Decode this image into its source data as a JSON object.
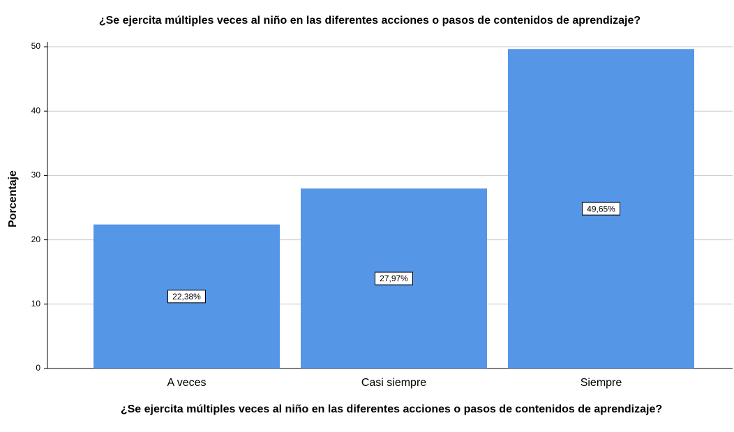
{
  "chart_data": {
    "type": "bar",
    "title": "¿Se ejercita múltiples veces al niño en las diferentes acciones o pasos de contenidos de aprendizaje?",
    "x_label": "¿Se ejercita múltiples veces al niño en las diferentes acciones o pasos de contenidos de aprendizaje?",
    "y_label": "Porcentaje",
    "categories": [
      "A veces",
      "Casi siempre",
      "Siempre"
    ],
    "values": [
      22.38,
      27.97,
      49.65
    ],
    "value_labels": [
      "22,38%",
      "27,97%",
      "49,65%"
    ],
    "color": "#5596e6",
    "ylim": [
      0,
      50
    ],
    "yticks": [
      0,
      10,
      20,
      30,
      40,
      50
    ],
    "grid": true
  }
}
